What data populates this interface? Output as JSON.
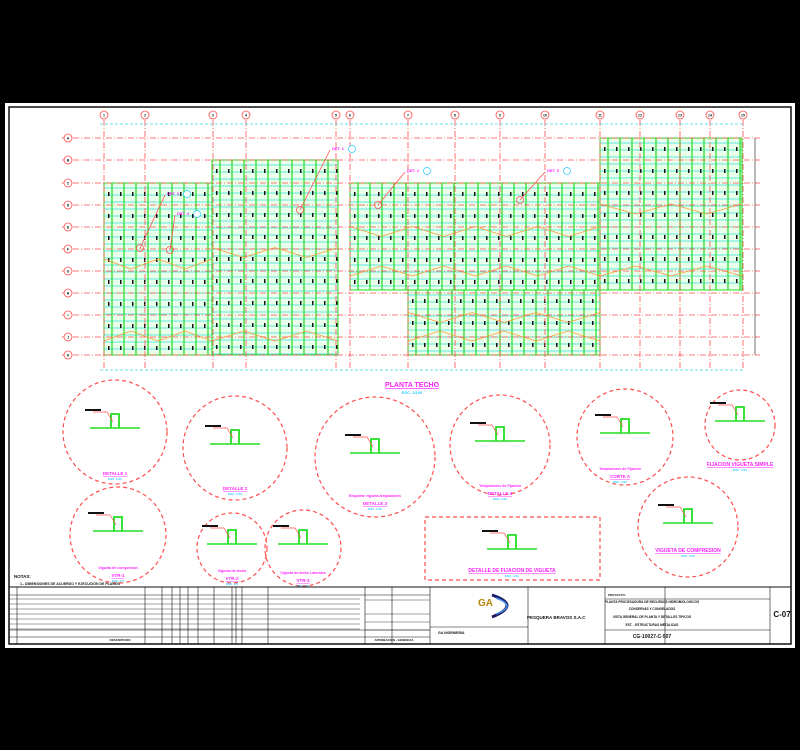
{
  "drawing": {
    "plan_title": "PLANTA TECHO",
    "plan_scale": "ESC. 1/100",
    "colors": {
      "background": "#000000",
      "sheet": "#ffffff",
      "axis": "#ff4d4d",
      "beam": "#22dd22",
      "purlin": "#33dddd",
      "brace": "#ff9933",
      "label": "#ff22ff",
      "scale": "#22ccff",
      "ink": "#111111"
    },
    "column_axes": [
      "1",
      "2",
      "3",
      "4",
      "5",
      "6",
      "7",
      "8",
      "9",
      "10",
      "11",
      "12",
      "13",
      "14",
      "15"
    ],
    "row_axes": [
      "A",
      "B",
      "C",
      "D",
      "E",
      "F",
      "G",
      "H",
      "I",
      "J",
      "K",
      "L"
    ],
    "callouts": [
      "DET. 1",
      "DET. 2",
      "DET. 3",
      "DET. 4",
      "DET. 5"
    ],
    "details": [
      {
        "title": "DETALLE 1",
        "scale": "ESC. 1/10"
      },
      {
        "title": "DETALLE 2",
        "scale": "ESC. 1/10"
      },
      {
        "title": "DETALLE 3",
        "scale": "ESC. 1/10",
        "caption": "Empalme vigueta-templadores"
      },
      {
        "title": "DETALLE 4",
        "scale": "ESC. 1/10",
        "caption": "Templadores de Fijación"
      },
      {
        "title": "CORTE A",
        "scale": "ESC. 1/10",
        "caption": "Templadores de Fijación"
      },
      {
        "title": "FIJACION VIGUETA SIMPLE",
        "scale": "ESC. 1/10"
      },
      {
        "title": "VIGUETA DE COMPRESION",
        "scale": "ESC. 1/10"
      },
      {
        "title": "DETALLE DE FIJACION DE VIGUETA",
        "scale": "ESC. 1/10"
      },
      {
        "title": "VTR-1",
        "scale": "ESC. 1/5",
        "caption": "Vigueta de compresión"
      },
      {
        "title": "VTR-2",
        "scale": "ESC. 1/5",
        "caption": "Vigueta de techo"
      },
      {
        "title": "VTR-3",
        "scale": "ESC. 1/5",
        "caption": "Vigueta de techo Laterales"
      }
    ],
    "notes_heading": "NOTAS:",
    "notes": [
      "1.- DIMENSIONES DE ACUERDO Y EJECUCIÓN DE PLANOS"
    ]
  },
  "title_block": {
    "company": "PESQUERA BRAVOS S.A.C",
    "designer": "GA INGENIERIA",
    "project_label": "PROYECTO:",
    "project": [
      "PLANTA PROCESADORA DE RECURSOS HIDROBIOLOGICOS",
      "CONSERVAS Y CONGELADOS"
    ],
    "sheet_desc": [
      "VISTA GENERAL DE PLANTA Y DETALLES TIPICOS",
      "EST. - ESTRUCTURAS METALICAS"
    ],
    "sheet_code": "C-07",
    "drawing_number": "CG-10027-C-507",
    "revision_label": "REVISION",
    "revision_col": "DESCRIPCION",
    "approval": "APROBACION - GERENCIA"
  }
}
